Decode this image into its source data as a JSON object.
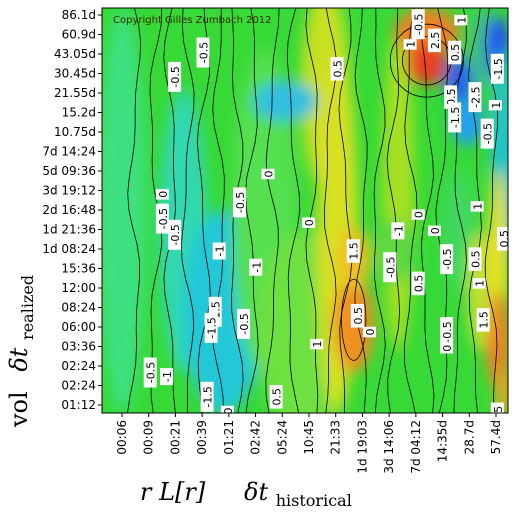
{
  "chart_data": {
    "type": "heatmap",
    "copyright": "Copyright Gilles Zumbach 2012",
    "x_axis": {
      "title_main": "r L[r]",
      "title_delta": "δt",
      "title_sub": "historical",
      "ticks": [
        "00:06",
        "00:09",
        "00:21",
        "00:39",
        "01:21",
        "02:42",
        "05:24",
        "10:45",
        "21:33",
        "1d 19:03",
        "3d 14:06",
        "7d 04:12",
        "14:35d",
        "28.7d",
        "57.4d"
      ]
    },
    "y_axis": {
      "title_main": "vol",
      "title_delta": "δt",
      "title_sub": "realized",
      "ticks_top_to_bottom": [
        "86.1d",
        "60.9d",
        "43.05d",
        "30.45d",
        "21.55d",
        "15.2d",
        "10.75d",
        "7d 14:24",
        "5d 09:36",
        "3d 19:12",
        "2d 16:48",
        "1d 21:36",
        "1d 08:24",
        "15:36",
        "12:00",
        "08:24",
        "06:00",
        "03:36",
        "02:24",
        "02:24",
        "01:12"
      ]
    },
    "contour_labels": [
      {
        "text": "-0.5",
        "u": 0.78,
        "v": 0.04
      },
      {
        "text": "1",
        "u": 0.885,
        "v": 0.03
      },
      {
        "text": "1",
        "u": 0.76,
        "v": 0.09
      },
      {
        "text": "2.5",
        "u": 0.82,
        "v": 0.08
      },
      {
        "text": "0.5",
        "u": 0.87,
        "v": 0.11
      },
      {
        "text": "-0.5",
        "u": 0.25,
        "v": 0.11
      },
      {
        "text": "-0.5",
        "u": 0.18,
        "v": 0.17
      },
      {
        "text": "0.5",
        "u": 0.58,
        "v": 0.15
      },
      {
        "text": "-1.5",
        "u": 0.975,
        "v": 0.15
      },
      {
        "text": "-2.5",
        "u": 0.92,
        "v": 0.22
      },
      {
        "text": "0.5",
        "u": 0.86,
        "v": 0.22
      },
      {
        "text": "1",
        "u": 0.97,
        "v": 0.24
      },
      {
        "text": "-1.5",
        "u": 0.87,
        "v": 0.27
      },
      {
        "text": "-0.5",
        "u": 0.95,
        "v": 0.31
      },
      {
        "text": "0",
        "u": 0.41,
        "v": 0.41
      },
      {
        "text": "0",
        "u": 0.15,
        "v": 0.46
      },
      {
        "text": "-0.5",
        "u": 0.34,
        "v": 0.48
      },
      {
        "text": "-0.5",
        "u": 0.15,
        "v": 0.52
      },
      {
        "text": "0",
        "u": 0.51,
        "v": 0.53
      },
      {
        "text": "0",
        "u": 0.78,
        "v": 0.51
      },
      {
        "text": "1",
        "u": 0.925,
        "v": 0.49
      },
      {
        "text": "-0.5",
        "u": 0.18,
        "v": 0.56
      },
      {
        "text": "-1",
        "u": 0.29,
        "v": 0.6
      },
      {
        "text": "-1",
        "u": 0.73,
        "v": 0.55
      },
      {
        "text": "0",
        "u": 0.82,
        "v": 0.55
      },
      {
        "text": "0.5",
        "u": 0.99,
        "v": 0.57
      },
      {
        "text": "1.5",
        "u": 0.62,
        "v": 0.6
      },
      {
        "text": "-0.5",
        "u": 0.85,
        "v": 0.62
      },
      {
        "text": "0.5",
        "u": 0.92,
        "v": 0.62
      },
      {
        "text": "-0.5",
        "u": 0.71,
        "v": 0.64
      },
      {
        "text": "-1",
        "u": 0.38,
        "v": 0.64
      },
      {
        "text": "0.5",
        "u": 0.78,
        "v": 0.68
      },
      {
        "text": "1",
        "u": 0.93,
        "v": 0.68
      },
      {
        "text": "-1.5",
        "u": 0.28,
        "v": 0.75
      },
      {
        "text": "0.5",
        "u": 0.63,
        "v": 0.76
      },
      {
        "text": "-1.5",
        "u": 0.27,
        "v": 0.79
      },
      {
        "text": "-0.5",
        "u": 0.35,
        "v": 0.78
      },
      {
        "text": "0",
        "u": 0.66,
        "v": 0.8
      },
      {
        "text": "-0.5",
        "u": 0.85,
        "v": 0.8
      },
      {
        "text": "1.5",
        "u": 0.94,
        "v": 0.77
      },
      {
        "text": "0",
        "u": 0.85,
        "v": 0.84
      },
      {
        "text": "1",
        "u": 0.53,
        "v": 0.83
      },
      {
        "text": "-0.5",
        "u": 0.12,
        "v": 0.9
      },
      {
        "text": "-1",
        "u": 0.16,
        "v": 0.91
      },
      {
        "text": "-1.5",
        "u": 0.26,
        "v": 0.96
      },
      {
        "text": "0.5",
        "u": 0.43,
        "v": 0.96
      },
      {
        "text": "0",
        "u": 0.31,
        "v": 0.995
      },
      {
        "text": ".5",
        "u": 0.975,
        "v": 0.995
      }
    ],
    "colors": {
      "low": "#0000ff",
      "mid": "#2ed52e",
      "high": "#ff0000",
      "contour": "#000000"
    }
  }
}
